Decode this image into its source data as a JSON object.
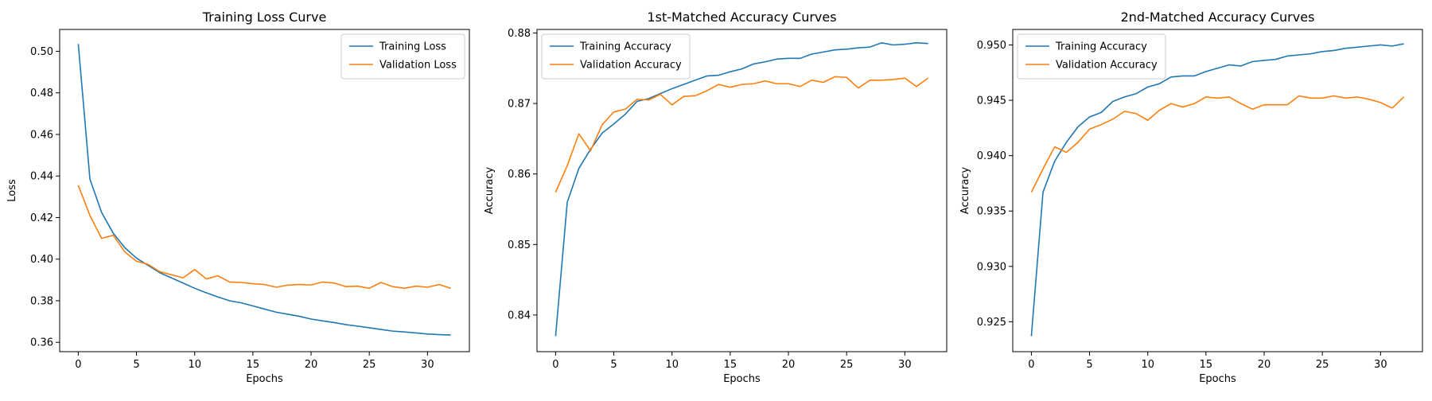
{
  "chart_data": [
    {
      "type": "line",
      "title": "Training Loss Curve",
      "xlabel": "Epochs",
      "ylabel": "Loss",
      "xlim": [
        -1.6,
        33.6
      ],
      "ylim": [
        0.3555,
        0.5105
      ],
      "xticks": [
        0,
        5,
        10,
        15,
        20,
        25,
        30
      ],
      "yticks": [
        0.36,
        0.38,
        0.4,
        0.42,
        0.44,
        0.46,
        0.48,
        0.5
      ],
      "ytick_labels": [
        "0.36",
        "0.38",
        "0.40",
        "0.42",
        "0.44",
        "0.46",
        "0.48",
        "0.50"
      ],
      "legend_position": "top-right",
      "x": [
        0,
        1,
        2,
        3,
        4,
        5,
        6,
        7,
        8,
        9,
        10,
        11,
        12,
        13,
        14,
        15,
        16,
        17,
        18,
        19,
        20,
        21,
        22,
        23,
        24,
        25,
        26,
        27,
        28,
        29,
        30,
        31,
        32
      ],
      "series": [
        {
          "name": "Training Loss",
          "color": "#1f77b4",
          "values": [
            0.5035,
            0.4385,
            0.4225,
            0.4125,
            0.4055,
            0.4005,
            0.397,
            0.3935,
            0.391,
            0.3885,
            0.386,
            0.3838,
            0.3818,
            0.38,
            0.379,
            0.3775,
            0.376,
            0.3745,
            0.3735,
            0.3725,
            0.3712,
            0.3703,
            0.3695,
            0.3685,
            0.3678,
            0.367,
            0.3662,
            0.3654,
            0.365,
            0.3645,
            0.364,
            0.3637,
            0.3635
          ]
        },
        {
          "name": "Validation Loss",
          "color": "#ff7f0e",
          "values": [
            0.4355,
            0.421,
            0.41,
            0.4115,
            0.4035,
            0.399,
            0.3975,
            0.394,
            0.3925,
            0.391,
            0.395,
            0.3905,
            0.392,
            0.389,
            0.3888,
            0.3882,
            0.3878,
            0.3865,
            0.3875,
            0.3878,
            0.3876,
            0.389,
            0.3885,
            0.3868,
            0.387,
            0.386,
            0.3888,
            0.3868,
            0.386,
            0.387,
            0.3865,
            0.3878,
            0.386
          ]
        }
      ]
    },
    {
      "type": "line",
      "title": "1st-Matched Accuracy Curves",
      "xlabel": "Epochs",
      "ylabel": "Accuracy",
      "xlim": [
        -1.6,
        33.6
      ],
      "ylim": [
        0.8348,
        0.8805
      ],
      "xticks": [
        0,
        5,
        10,
        15,
        20,
        25,
        30
      ],
      "yticks": [
        0.84,
        0.85,
        0.86,
        0.87,
        0.88
      ],
      "ytick_labels": [
        "0.84",
        "0.85",
        "0.86",
        "0.87",
        "0.88"
      ],
      "legend_position": "top-left",
      "x": [
        0,
        1,
        2,
        3,
        4,
        5,
        6,
        7,
        8,
        9,
        10,
        11,
        12,
        13,
        14,
        15,
        16,
        17,
        18,
        19,
        20,
        21,
        22,
        23,
        24,
        25,
        26,
        27,
        28,
        29,
        30,
        31,
        32
      ],
      "series": [
        {
          "name": "Training Accuracy",
          "color": "#1f77b4",
          "values": [
            0.837,
            0.856,
            0.8608,
            0.8635,
            0.8658,
            0.8671,
            0.8685,
            0.8703,
            0.8707,
            0.8714,
            0.8721,
            0.8727,
            0.8733,
            0.8739,
            0.874,
            0.8745,
            0.8749,
            0.8756,
            0.8759,
            0.8763,
            0.8764,
            0.8764,
            0.877,
            0.8773,
            0.8776,
            0.8777,
            0.8779,
            0.878,
            0.8786,
            0.8783,
            0.8784,
            0.8786,
            0.8785
          ]
        },
        {
          "name": "Validation Accuracy",
          "color": "#ff7f0e",
          "values": [
            0.8574,
            0.8612,
            0.8657,
            0.8633,
            0.867,
            0.8688,
            0.8692,
            0.8706,
            0.8705,
            0.8713,
            0.8698,
            0.871,
            0.8711,
            0.8718,
            0.8727,
            0.8723,
            0.8727,
            0.8728,
            0.8732,
            0.8728,
            0.8728,
            0.8724,
            0.8733,
            0.873,
            0.8738,
            0.8737,
            0.8722,
            0.8733,
            0.8733,
            0.8734,
            0.8736,
            0.8724,
            0.8736
          ]
        }
      ]
    },
    {
      "type": "line",
      "title": "2nd-Matched Accuracy Curves",
      "xlabel": "Epochs",
      "ylabel": "Accuracy",
      "xlim": [
        -1.6,
        33.6
      ],
      "ylim": [
        0.9223,
        0.9514
      ],
      "xticks": [
        0,
        5,
        10,
        15,
        20,
        25,
        30
      ],
      "yticks": [
        0.925,
        0.93,
        0.935,
        0.94,
        0.945,
        0.95
      ],
      "ytick_labels": [
        "0.925",
        "0.930",
        "0.935",
        "0.940",
        "0.945",
        "0.950"
      ],
      "legend_position": "top-left",
      "x": [
        0,
        1,
        2,
        3,
        4,
        5,
        6,
        7,
        8,
        9,
        10,
        11,
        12,
        13,
        14,
        15,
        16,
        17,
        18,
        19,
        20,
        21,
        22,
        23,
        24,
        25,
        26,
        27,
        28,
        29,
        30,
        31,
        32
      ],
      "series": [
        {
          "name": "Training Accuracy",
          "color": "#1f77b4",
          "values": [
            0.9237,
            0.9367,
            0.9395,
            0.9412,
            0.9426,
            0.9435,
            0.9439,
            0.9449,
            0.9453,
            0.9456,
            0.9462,
            0.9465,
            0.9471,
            0.9472,
            0.9472,
            0.9476,
            0.9479,
            0.9482,
            0.9481,
            0.9485,
            0.9486,
            0.9487,
            0.949,
            0.9491,
            0.9492,
            0.9494,
            0.9495,
            0.9497,
            0.9498,
            0.9499,
            0.95,
            0.9499,
            0.9501
          ]
        },
        {
          "name": "Validation Accuracy",
          "color": "#ff7f0e",
          "values": [
            0.9367,
            0.9388,
            0.9408,
            0.9403,
            0.9412,
            0.9424,
            0.9428,
            0.9433,
            0.944,
            0.9438,
            0.9432,
            0.9441,
            0.9447,
            0.9444,
            0.9447,
            0.9453,
            0.9452,
            0.9453,
            0.9447,
            0.9442,
            0.9446,
            0.9446,
            0.9446,
            0.9454,
            0.9452,
            0.9452,
            0.9454,
            0.9452,
            0.9453,
            0.9451,
            0.9448,
            0.9443,
            0.9453
          ]
        }
      ]
    }
  ]
}
